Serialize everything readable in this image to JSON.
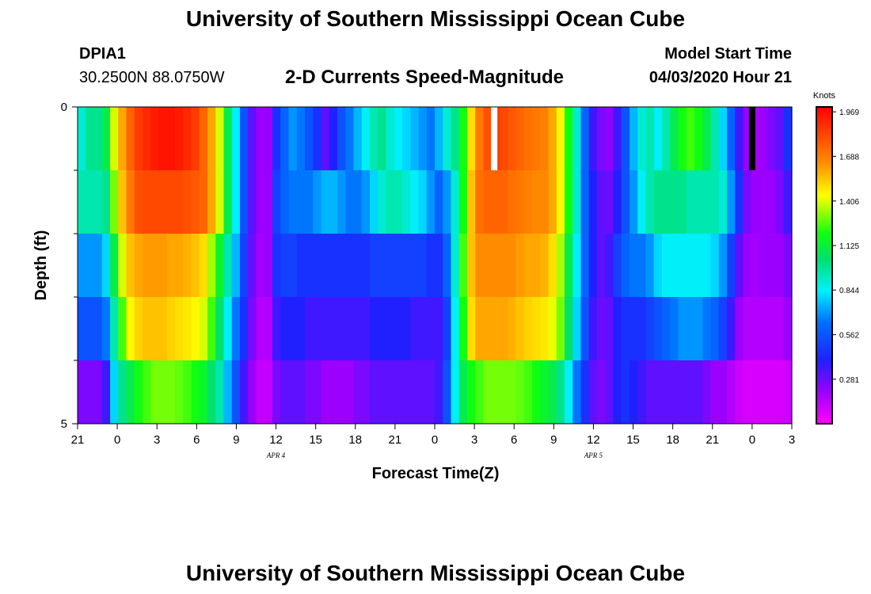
{
  "header": {
    "title_top": "University of Southern Mississippi Ocean Cube",
    "title_bottom": "University of Southern Mississippi Ocean Cube",
    "station_id": "DPIA1",
    "station_coords": "30.2500N 88.0750W",
    "model_start_label": "Model Start Time",
    "model_start_value": "04/03/2020 Hour 21"
  },
  "chart_data": {
    "type": "heatmap",
    "title": "2-D Currents Speed-Magnitude",
    "xlabel": "Forecast Time(Z)",
    "ylabel": "Depth (ft)",
    "x_unit": "forecast hour since 04/03/2020 21Z",
    "x_range": [
      0,
      54
    ],
    "x_ticks": [
      {
        "hour": 0,
        "label": "21"
      },
      {
        "hour": 3,
        "label": "0"
      },
      {
        "hour": 6,
        "label": "3"
      },
      {
        "hour": 9,
        "label": "6"
      },
      {
        "hour": 12,
        "label": "9"
      },
      {
        "hour": 15,
        "label": "12"
      },
      {
        "hour": 18,
        "label": "15"
      },
      {
        "hour": 21,
        "label": "18"
      },
      {
        "hour": 24,
        "label": "21"
      },
      {
        "hour": 27,
        "label": "0"
      },
      {
        "hour": 30,
        "label": "3"
      },
      {
        "hour": 33,
        "label": "6"
      },
      {
        "hour": 36,
        "label": "9"
      },
      {
        "hour": 39,
        "label": "12"
      },
      {
        "hour": 42,
        "label": "15"
      },
      {
        "hour": 45,
        "label": "18"
      },
      {
        "hour": 48,
        "label": "21"
      },
      {
        "hour": 51,
        "label": "0"
      },
      {
        "hour": 54,
        "label": "3"
      }
    ],
    "date_labels": [
      {
        "hour": 15,
        "label": "APR 4"
      },
      {
        "hour": 39,
        "label": "APR 5"
      }
    ],
    "y_range": [
      0,
      5
    ],
    "y_tick_labels": [
      {
        "depth": 0,
        "label": "0"
      },
      {
        "depth": 5,
        "label": "5"
      }
    ],
    "y_minor_ticks": [
      1,
      2,
      3,
      4
    ],
    "depth_layers": [
      0.5,
      1.5,
      2.5,
      3.5,
      4.5
    ],
    "colorbar": {
      "unit": "Knots",
      "min": 0.0,
      "max": 2.0,
      "ticks": [
        1.969,
        1.688,
        1.406,
        1.125,
        0.844,
        0.562,
        0.281
      ]
    },
    "series": [
      {
        "name": "depth 0.5 ft",
        "values": [
          0.9,
          1.0,
          1.0,
          1.1,
          1.4,
          1.6,
          1.75,
          1.85,
          1.9,
          1.93,
          1.95,
          1.95,
          1.93,
          1.9,
          1.85,
          1.75,
          1.6,
          1.4,
          1.1,
          0.85,
          0.55,
          0.3,
          0.2,
          0.2,
          0.45,
          0.6,
          0.7,
          0.65,
          0.55,
          0.45,
          0.3,
          0.4,
          0.55,
          0.65,
          0.75,
          0.85,
          0.95,
          1.0,
          0.9,
          0.85,
          0.8,
          0.75,
          0.7,
          0.65,
          0.75,
          0.9,
          1.0,
          1.2,
          1.5,
          1.7,
          1.8,
          1.85,
          1.82,
          1.78,
          1.75,
          1.72,
          1.7,
          1.68,
          1.6,
          1.45,
          1.2,
          0.9,
          0.6,
          0.35,
          0.25,
          0.22,
          0.35,
          0.55,
          0.75,
          0.9,
          0.95,
          0.85,
          0.95,
          1.1,
          1.2,
          1.25,
          1.2,
          1.1,
          0.95,
          0.8,
          0.6,
          0.35,
          0.2,
          0.18,
          0.2,
          0.25,
          0.3,
          0.45
        ]
      },
      {
        "name": "depth 1.5 ft",
        "values": [
          0.95,
          0.95,
          0.95,
          1.0,
          1.3,
          1.55,
          1.7,
          1.8,
          1.82,
          1.82,
          1.82,
          1.82,
          1.82,
          1.8,
          1.78,
          1.75,
          1.6,
          1.4,
          1.1,
          0.85,
          0.55,
          0.3,
          0.2,
          0.2,
          0.5,
          0.6,
          0.65,
          0.65,
          0.65,
          0.7,
          0.75,
          0.75,
          0.7,
          0.65,
          0.65,
          0.7,
          0.8,
          0.9,
          0.95,
          0.95,
          0.9,
          0.85,
          0.8,
          0.7,
          0.6,
          0.7,
          0.9,
          1.2,
          1.55,
          1.72,
          1.75,
          1.75,
          1.75,
          1.72,
          1.7,
          1.68,
          1.66,
          1.66,
          1.6,
          1.45,
          1.2,
          0.9,
          0.6,
          0.4,
          0.3,
          0.28,
          0.4,
          0.55,
          0.7,
          0.85,
          0.95,
          1.0,
          1.0,
          1.0,
          1.0,
          0.95,
          0.95,
          0.95,
          0.95,
          0.9,
          0.7,
          0.45,
          0.25,
          0.2,
          0.2,
          0.2,
          0.25,
          0.35
        ]
      },
      {
        "name": "depth 2.5 ft",
        "values": [
          0.7,
          0.7,
          0.7,
          0.8,
          1.1,
          1.4,
          1.55,
          1.6,
          1.62,
          1.62,
          1.62,
          1.6,
          1.6,
          1.58,
          1.55,
          1.5,
          1.35,
          1.15,
          0.95,
          0.75,
          0.5,
          0.28,
          0.18,
          0.2,
          0.45,
          0.5,
          0.5,
          0.45,
          0.45,
          0.45,
          0.45,
          0.45,
          0.45,
          0.45,
          0.45,
          0.45,
          0.5,
          0.5,
          0.5,
          0.5,
          0.5,
          0.5,
          0.5,
          0.45,
          0.45,
          0.6,
          0.9,
          1.25,
          1.55,
          1.65,
          1.65,
          1.65,
          1.65,
          1.65,
          1.62,
          1.6,
          1.6,
          1.58,
          1.5,
          1.35,
          1.1,
          0.85,
          0.6,
          0.4,
          0.3,
          0.35,
          0.5,
          0.6,
          0.65,
          0.65,
          0.7,
          0.8,
          0.85,
          0.85,
          0.85,
          0.85,
          0.85,
          0.85,
          0.8,
          0.7,
          0.5,
          0.3,
          0.2,
          0.18,
          0.2,
          0.2,
          0.2,
          0.25
        ]
      },
      {
        "name": "depth 3.5 ft",
        "values": [
          0.55,
          0.55,
          0.55,
          0.65,
          0.95,
          1.25,
          1.45,
          1.52,
          1.55,
          1.55,
          1.55,
          1.52,
          1.5,
          1.48,
          1.45,
          1.4,
          1.25,
          1.05,
          0.85,
          0.65,
          0.45,
          0.25,
          0.15,
          0.15,
          0.35,
          0.4,
          0.4,
          0.4,
          0.35,
          0.35,
          0.35,
          0.35,
          0.35,
          0.35,
          0.35,
          0.35,
          0.4,
          0.4,
          0.4,
          0.4,
          0.4,
          0.35,
          0.35,
          0.35,
          0.35,
          0.5,
          0.85,
          1.2,
          1.5,
          1.6,
          1.6,
          1.6,
          1.6,
          1.58,
          1.55,
          1.52,
          1.5,
          1.48,
          1.42,
          1.3,
          1.05,
          0.8,
          0.55,
          0.35,
          0.28,
          0.3,
          0.4,
          0.45,
          0.45,
          0.45,
          0.5,
          0.55,
          0.6,
          0.65,
          0.7,
          0.7,
          0.7,
          0.65,
          0.6,
          0.5,
          0.35,
          0.2,
          0.15,
          0.15,
          0.15,
          0.15,
          0.15,
          0.2
        ]
      },
      {
        "name": "depth 4.5 ft",
        "values": [
          0.25,
          0.25,
          0.25,
          0.35,
          0.8,
          1.0,
          1.1,
          1.2,
          1.25,
          1.3,
          1.3,
          1.3,
          1.28,
          1.25,
          1.2,
          1.15,
          1.05,
          0.95,
          0.75,
          0.55,
          0.35,
          0.2,
          0.12,
          0.12,
          0.25,
          0.3,
          0.3,
          0.3,
          0.25,
          0.25,
          0.2,
          0.2,
          0.2,
          0.2,
          0.25,
          0.25,
          0.3,
          0.3,
          0.3,
          0.3,
          0.3,
          0.3,
          0.3,
          0.3,
          0.35,
          0.55,
          0.85,
          1.1,
          1.2,
          1.25,
          1.3,
          1.3,
          1.3,
          1.3,
          1.28,
          1.25,
          1.2,
          1.15,
          1.1,
          1.0,
          0.85,
          0.65,
          0.45,
          0.3,
          0.25,
          0.3,
          0.4,
          0.45,
          0.4,
          0.35,
          0.3,
          0.3,
          0.3,
          0.3,
          0.3,
          0.3,
          0.3,
          0.25,
          0.2,
          0.2,
          0.15,
          0.1,
          0.08,
          0.08,
          0.08,
          0.08,
          0.08,
          0.1
        ]
      }
    ],
    "annotations": [
      {
        "type": "marker",
        "color": "#ffffff",
        "hour": 31.5,
        "depth_from": 0,
        "depth_to": 1
      },
      {
        "type": "marker",
        "color": "#000000",
        "hour": 51.0,
        "depth_from": 0,
        "depth_to": 1
      }
    ]
  }
}
